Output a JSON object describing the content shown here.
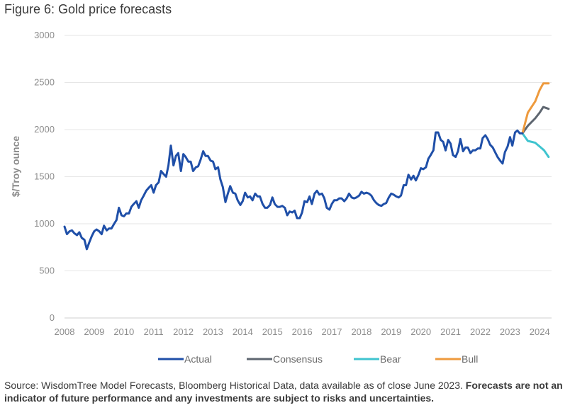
{
  "figure": {
    "title": "Figure 6: Gold price forecasts",
    "source_regular": "Source: WisdomTree Model Forecasts, Bloomberg Historical Data, data available as of close June 2023.",
    "source_bold": "Forecasts are not an indicator of future performance and any investments are subject to risks and uncertainties."
  },
  "chart_data": {
    "type": "line",
    "title": "Figure 6: Gold price forecasts",
    "ylabel": "$/Troy ounce",
    "xlabel": "",
    "ylim": [
      0,
      3000
    ],
    "yticks": [
      0,
      500,
      1000,
      1500,
      2000,
      2500,
      3000
    ],
    "xlim": [
      2008.0,
      2024.4
    ],
    "xticks": [
      2008,
      2009,
      2010,
      2011,
      2012,
      2013,
      2014,
      2015,
      2016,
      2017,
      2018,
      2019,
      2020,
      2021,
      2022,
      2023,
      2024
    ],
    "grid": "horizontal",
    "legend_position": "bottom",
    "series": [
      {
        "name": "Actual",
        "color": "#1f4fa8",
        "points": [
          [
            2008.0,
            970
          ],
          [
            2008.08,
            890
          ],
          [
            2008.17,
            920
          ],
          [
            2008.25,
            930
          ],
          [
            2008.33,
            900
          ],
          [
            2008.42,
            880
          ],
          [
            2008.5,
            910
          ],
          [
            2008.58,
            850
          ],
          [
            2008.67,
            830
          ],
          [
            2008.75,
            730
          ],
          [
            2008.83,
            800
          ],
          [
            2008.92,
            870
          ],
          [
            2009.0,
            920
          ],
          [
            2009.08,
            940
          ],
          [
            2009.17,
            920
          ],
          [
            2009.25,
            890
          ],
          [
            2009.33,
            980
          ],
          [
            2009.42,
            930
          ],
          [
            2009.5,
            950
          ],
          [
            2009.58,
            950
          ],
          [
            2009.67,
            1000
          ],
          [
            2009.75,
            1040
          ],
          [
            2009.83,
            1170
          ],
          [
            2009.92,
            1090
          ],
          [
            2010.0,
            1080
          ],
          [
            2010.08,
            1110
          ],
          [
            2010.17,
            1110
          ],
          [
            2010.25,
            1180
          ],
          [
            2010.33,
            1210
          ],
          [
            2010.42,
            1240
          ],
          [
            2010.5,
            1170
          ],
          [
            2010.58,
            1250
          ],
          [
            2010.67,
            1300
          ],
          [
            2010.75,
            1350
          ],
          [
            2010.83,
            1380
          ],
          [
            2010.92,
            1410
          ],
          [
            2011.0,
            1330
          ],
          [
            2011.08,
            1410
          ],
          [
            2011.17,
            1440
          ],
          [
            2011.25,
            1560
          ],
          [
            2011.33,
            1530
          ],
          [
            2011.42,
            1500
          ],
          [
            2011.5,
            1620
          ],
          [
            2011.58,
            1830
          ],
          [
            2011.67,
            1620
          ],
          [
            2011.75,
            1720
          ],
          [
            2011.83,
            1750
          ],
          [
            2011.92,
            1560
          ],
          [
            2012.0,
            1740
          ],
          [
            2012.08,
            1710
          ],
          [
            2012.17,
            1660
          ],
          [
            2012.25,
            1660
          ],
          [
            2012.33,
            1560
          ],
          [
            2012.42,
            1600
          ],
          [
            2012.5,
            1610
          ],
          [
            2012.58,
            1680
          ],
          [
            2012.67,
            1770
          ],
          [
            2012.75,
            1720
          ],
          [
            2012.83,
            1720
          ],
          [
            2012.92,
            1670
          ],
          [
            2013.0,
            1660
          ],
          [
            2013.08,
            1580
          ],
          [
            2013.17,
            1600
          ],
          [
            2013.25,
            1470
          ],
          [
            2013.33,
            1390
          ],
          [
            2013.42,
            1230
          ],
          [
            2013.5,
            1320
          ],
          [
            2013.58,
            1400
          ],
          [
            2013.67,
            1330
          ],
          [
            2013.75,
            1320
          ],
          [
            2013.83,
            1250
          ],
          [
            2013.92,
            1200
          ],
          [
            2014.0,
            1240
          ],
          [
            2014.08,
            1330
          ],
          [
            2014.17,
            1280
          ],
          [
            2014.25,
            1290
          ],
          [
            2014.33,
            1250
          ],
          [
            2014.42,
            1320
          ],
          [
            2014.5,
            1290
          ],
          [
            2014.58,
            1290
          ],
          [
            2014.67,
            1210
          ],
          [
            2014.75,
            1170
          ],
          [
            2014.83,
            1170
          ],
          [
            2014.92,
            1200
          ],
          [
            2015.0,
            1280
          ],
          [
            2015.08,
            1210
          ],
          [
            2015.17,
            1180
          ],
          [
            2015.25,
            1180
          ],
          [
            2015.33,
            1190
          ],
          [
            2015.42,
            1170
          ],
          [
            2015.5,
            1090
          ],
          [
            2015.58,
            1130
          ],
          [
            2015.67,
            1120
          ],
          [
            2015.75,
            1140
          ],
          [
            2015.83,
            1060
          ],
          [
            2015.92,
            1060
          ],
          [
            2016.0,
            1120
          ],
          [
            2016.08,
            1240
          ],
          [
            2016.17,
            1230
          ],
          [
            2016.25,
            1290
          ],
          [
            2016.33,
            1210
          ],
          [
            2016.42,
            1320
          ],
          [
            2016.5,
            1350
          ],
          [
            2016.58,
            1310
          ],
          [
            2016.67,
            1320
          ],
          [
            2016.75,
            1270
          ],
          [
            2016.83,
            1170
          ],
          [
            2016.92,
            1150
          ],
          [
            2017.0,
            1210
          ],
          [
            2017.08,
            1250
          ],
          [
            2017.17,
            1250
          ],
          [
            2017.25,
            1270
          ],
          [
            2017.33,
            1270
          ],
          [
            2017.42,
            1240
          ],
          [
            2017.5,
            1270
          ],
          [
            2017.58,
            1320
          ],
          [
            2017.67,
            1280
          ],
          [
            2017.75,
            1270
          ],
          [
            2017.83,
            1280
          ],
          [
            2017.92,
            1300
          ],
          [
            2018.0,
            1340
          ],
          [
            2018.08,
            1320
          ],
          [
            2018.17,
            1330
          ],
          [
            2018.25,
            1320
          ],
          [
            2018.33,
            1300
          ],
          [
            2018.42,
            1250
          ],
          [
            2018.5,
            1220
          ],
          [
            2018.58,
            1200
          ],
          [
            2018.67,
            1190
          ],
          [
            2018.75,
            1210
          ],
          [
            2018.83,
            1220
          ],
          [
            2018.92,
            1280
          ],
          [
            2019.0,
            1320
          ],
          [
            2019.08,
            1310
          ],
          [
            2019.17,
            1290
          ],
          [
            2019.25,
            1280
          ],
          [
            2019.33,
            1300
          ],
          [
            2019.42,
            1410
          ],
          [
            2019.5,
            1410
          ],
          [
            2019.58,
            1520
          ],
          [
            2019.67,
            1470
          ],
          [
            2019.75,
            1510
          ],
          [
            2019.83,
            1460
          ],
          [
            2019.92,
            1520
          ],
          [
            2020.0,
            1590
          ],
          [
            2020.08,
            1580
          ],
          [
            2020.17,
            1600
          ],
          [
            2020.25,
            1690
          ],
          [
            2020.33,
            1730
          ],
          [
            2020.42,
            1780
          ],
          [
            2020.5,
            1970
          ],
          [
            2020.58,
            1970
          ],
          [
            2020.67,
            1890
          ],
          [
            2020.75,
            1870
          ],
          [
            2020.83,
            1780
          ],
          [
            2020.92,
            1890
          ],
          [
            2021.0,
            1850
          ],
          [
            2021.08,
            1730
          ],
          [
            2021.17,
            1710
          ],
          [
            2021.25,
            1770
          ],
          [
            2021.33,
            1900
          ],
          [
            2021.42,
            1770
          ],
          [
            2021.5,
            1810
          ],
          [
            2021.58,
            1810
          ],
          [
            2021.67,
            1750
          ],
          [
            2021.75,
            1780
          ],
          [
            2021.83,
            1780
          ],
          [
            2021.92,
            1800
          ],
          [
            2022.0,
            1800
          ],
          [
            2022.08,
            1910
          ],
          [
            2022.17,
            1940
          ],
          [
            2022.25,
            1900
          ],
          [
            2022.33,
            1840
          ],
          [
            2022.42,
            1810
          ],
          [
            2022.5,
            1760
          ],
          [
            2022.58,
            1710
          ],
          [
            2022.67,
            1670
          ],
          [
            2022.75,
            1640
          ],
          [
            2022.83,
            1760
          ],
          [
            2022.92,
            1820
          ],
          [
            2023.0,
            1920
          ],
          [
            2023.08,
            1830
          ],
          [
            2023.17,
            1970
          ],
          [
            2023.25,
            1990
          ],
          [
            2023.33,
            1960
          ],
          [
            2023.42,
            1960
          ]
        ]
      },
      {
        "name": "Consensus",
        "color": "#5e6670",
        "points": [
          [
            2023.42,
            1960
          ],
          [
            2023.6,
            2040
          ],
          [
            2023.85,
            2120
          ],
          [
            2024.0,
            2180
          ],
          [
            2024.12,
            2240
          ],
          [
            2024.3,
            2220
          ]
        ]
      },
      {
        "name": "Bear",
        "color": "#3fc4cf",
        "points": [
          [
            2023.42,
            1960
          ],
          [
            2023.6,
            1880
          ],
          [
            2023.85,
            1860
          ],
          [
            2024.0,
            1820
          ],
          [
            2024.15,
            1780
          ],
          [
            2024.3,
            1710
          ]
        ]
      },
      {
        "name": "Bull",
        "color": "#ee9a3d",
        "points": [
          [
            2023.42,
            1960
          ],
          [
            2023.6,
            2180
          ],
          [
            2023.85,
            2300
          ],
          [
            2024.0,
            2420
          ],
          [
            2024.12,
            2490
          ],
          [
            2024.3,
            2490
          ]
        ]
      }
    ]
  }
}
